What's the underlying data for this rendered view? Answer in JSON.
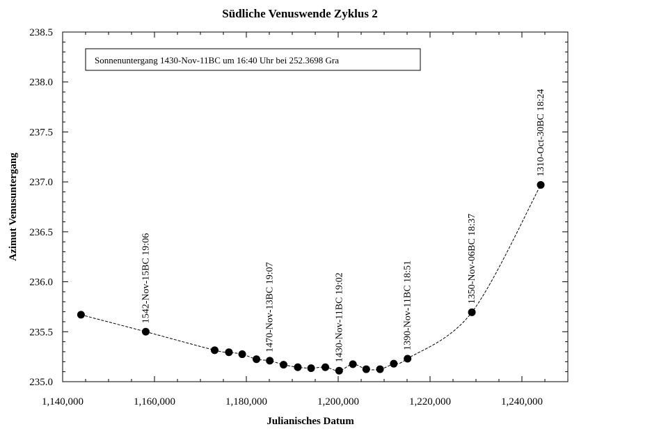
{
  "chart_data": {
    "type": "scatter",
    "title": "Südliche Venuswende Zyklus 2",
    "xlabel": "Julianisches Datum",
    "ylabel": "Azimut Venusuntergang",
    "xlim": [
      1140000,
      1250000
    ],
    "ylim": [
      235.0,
      238.5
    ],
    "x_ticks": [
      {
        "value": 1140000,
        "label": "1,140,000"
      },
      {
        "value": 1160000,
        "label": "1,160,000"
      },
      {
        "value": 1180000,
        "label": "1,180,000"
      },
      {
        "value": 1200000,
        "label": "1,200,000"
      },
      {
        "value": 1220000,
        "label": "1,220,000"
      },
      {
        "value": 1240000,
        "label": "1,240,000"
      }
    ],
    "y_ticks": [
      {
        "value": 235.0,
        "label": "235.0"
      },
      {
        "value": 235.5,
        "label": "235.5"
      },
      {
        "value": 236.0,
        "label": "236.0"
      },
      {
        "value": 236.5,
        "label": "236.5"
      },
      {
        "value": 237.0,
        "label": "237.0"
      },
      {
        "value": 237.5,
        "label": "237.5"
      },
      {
        "value": 238.0,
        "label": "238.0"
      },
      {
        "value": 238.5,
        "label": "238.5"
      }
    ],
    "grid": false,
    "curve": "dashed fit line",
    "series": [
      {
        "marker": "filled circle",
        "color": "#000000",
        "points": [
          {
            "x": 1144000,
            "y": 235.67
          },
          {
            "x": 1158100,
            "y": 235.5
          },
          {
            "x": 1173100,
            "y": 235.315
          },
          {
            "x": 1176200,
            "y": 235.295
          },
          {
            "x": 1179100,
            "y": 235.275
          },
          {
            "x": 1182200,
            "y": 235.225
          },
          {
            "x": 1185100,
            "y": 235.21
          },
          {
            "x": 1188100,
            "y": 235.17
          },
          {
            "x": 1191200,
            "y": 235.145
          },
          {
            "x": 1194100,
            "y": 235.135
          },
          {
            "x": 1197200,
            "y": 235.145
          },
          {
            "x": 1200200,
            "y": 235.11
          },
          {
            "x": 1203200,
            "y": 235.175
          },
          {
            "x": 1206100,
            "y": 235.125
          },
          {
            "x": 1209100,
            "y": 235.125
          },
          {
            "x": 1212100,
            "y": 235.18
          },
          {
            "x": 1215100,
            "y": 235.23
          },
          {
            "x": 1229100,
            "y": 235.695
          },
          {
            "x": 1244100,
            "y": 236.97
          }
        ]
      }
    ],
    "annotations": [
      {
        "x": 1158100,
        "y": 235.5,
        "text": "1542-Nov-15BC 19:06"
      },
      {
        "x": 1185100,
        "y": 235.21,
        "text": "1470-Nov-13BC 19:07"
      },
      {
        "x": 1200200,
        "y": 235.11,
        "text": "1430-Nov-11BC 19:02"
      },
      {
        "x": 1215100,
        "y": 235.23,
        "text": "1390-Nov-11BC 18:51"
      },
      {
        "x": 1229100,
        "y": 235.695,
        "text": "1350-Nov-06BC 18:37"
      },
      {
        "x": 1244100,
        "y": 236.97,
        "text": "1310-Oct-30BC 18:24"
      }
    ],
    "note": "Sonnenuntergang 1430-Nov-11BC um 16:40 Uhr bei 252.3698 Gra"
  }
}
